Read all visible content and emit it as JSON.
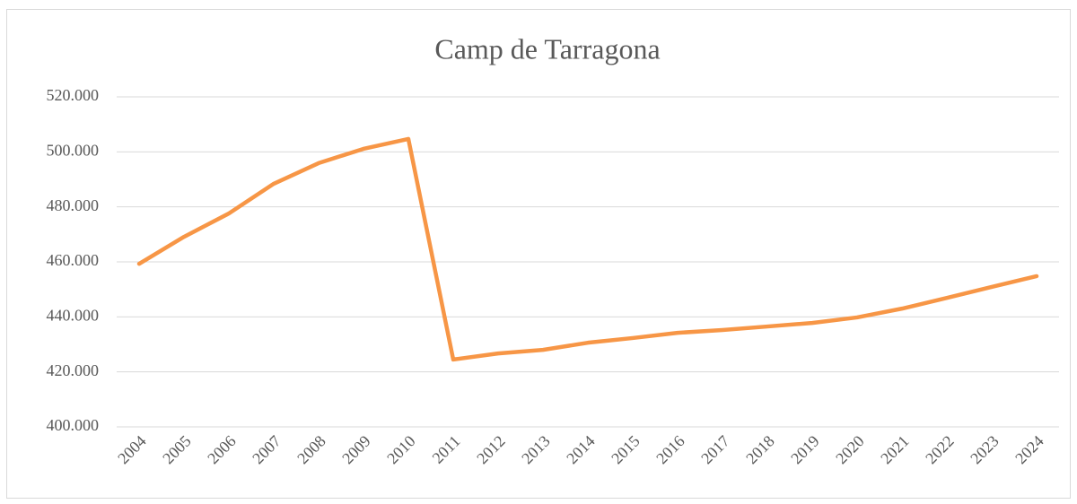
{
  "chart_data": {
    "type": "line",
    "title": "Camp de Tarragona",
    "categories": [
      "2004",
      "2005",
      "2006",
      "2007",
      "2008",
      "2009",
      "2010",
      "2011",
      "2012",
      "2013",
      "2014",
      "2015",
      "2016",
      "2017",
      "2018",
      "2019",
      "2020",
      "2021",
      "2022",
      "2023",
      "2024"
    ],
    "series": [
      {
        "name": "Camp de Tarragona",
        "color": "#f79646",
        "values": [
          459300,
          469100,
          477600,
          488400,
          495900,
          501100,
          504700,
          424500,
          426700,
          428000,
          430600,
          432300,
          434200,
          435200,
          436500,
          437800,
          439800,
          443000,
          446900,
          450900,
          454800
        ]
      }
    ],
    "ylim": [
      400000,
      520000
    ],
    "yticks": [
      {
        "value": 400000,
        "label": "400.000"
      },
      {
        "value": 420000,
        "label": "420.000"
      },
      {
        "value": 440000,
        "label": "440.000"
      },
      {
        "value": 460000,
        "label": "460.000"
      },
      {
        "value": 480000,
        "label": "480.000"
      },
      {
        "value": 500000,
        "label": "500.000"
      },
      {
        "value": 520000,
        "label": "520.000"
      }
    ],
    "grid": true
  }
}
